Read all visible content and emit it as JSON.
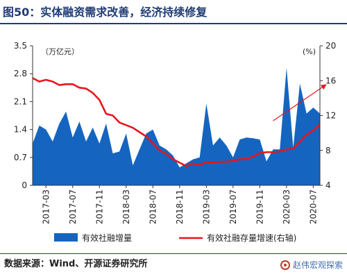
{
  "title": "图50：实体融资需求改善，经济持续修复",
  "source": "数据来源：Wind、开源证券研究所",
  "watermark": "赵伟宏观探索",
  "colors": {
    "area": "#1565C0",
    "line": "#E8141B",
    "title": "#1f3c74"
  },
  "chart_data": {
    "type": "area",
    "left_unit": "（万亿元）",
    "right_unit": "(%)",
    "left_axis": {
      "min": 0,
      "max": 3.5,
      "ticks": [
        "0",
        "0.7",
        "1.4",
        "2.1",
        "2.8",
        "3.5"
      ]
    },
    "right_axis": {
      "min": 4,
      "max": 20,
      "ticks": [
        "4",
        "8",
        "12",
        "16",
        "20"
      ]
    },
    "x_tick_labels": [
      "2017-03",
      "2017-07",
      "2017-11",
      "2018-03",
      "2018-07",
      "2018-11",
      "2019-03",
      "2019-07",
      "2019-11",
      "2020-03",
      "2020-07"
    ],
    "x": [
      "2017-01",
      "2017-02",
      "2017-03",
      "2017-04",
      "2017-05",
      "2017-06",
      "2017-07",
      "2017-08",
      "2017-09",
      "2017-10",
      "2017-11",
      "2017-12",
      "2018-01",
      "2018-02",
      "2018-03",
      "2018-04",
      "2018-05",
      "2018-06",
      "2018-07",
      "2018-08",
      "2018-09",
      "2018-10",
      "2018-11",
      "2018-12",
      "2019-01",
      "2019-02",
      "2019-03",
      "2019-04",
      "2019-05",
      "2019-06",
      "2019-07",
      "2019-08",
      "2019-09",
      "2019-10",
      "2019-11",
      "2019-12",
      "2020-01",
      "2020-02",
      "2020-03",
      "2020-04",
      "2020-05",
      "2020-06",
      "2020-07",
      "2020-08"
    ],
    "series": [
      {
        "name": "有效社融增量",
        "axis": "left",
        "style": "area",
        "values": [
          1.05,
          1.5,
          1.4,
          1.1,
          1.55,
          1.85,
          1.2,
          1.6,
          1.1,
          1.45,
          1.05,
          1.55,
          0.8,
          0.85,
          1.3,
          0.5,
          0.9,
          1.3,
          1.4,
          1.0,
          0.9,
          0.75,
          0.45,
          0.55,
          0.65,
          0.7,
          2.05,
          1.0,
          1.2,
          1.0,
          0.7,
          1.15,
          1.2,
          1.18,
          1.15,
          0.6,
          0.9,
          0.9,
          2.95,
          0.95,
          2.55,
          1.8,
          1.95,
          1.8
        ]
      },
      {
        "name": "有效社融存量增速(右轴)",
        "axis": "right",
        "style": "line",
        "values": [
          16.3,
          15.9,
          16.1,
          15.9,
          15.5,
          15.6,
          15.6,
          15.2,
          15.1,
          14.6,
          13.8,
          12.2,
          12.0,
          11.2,
          10.9,
          10.6,
          10.1,
          9.6,
          8.8,
          8.0,
          7.6,
          7.0,
          6.6,
          6.2,
          6.5,
          6.3,
          6.7,
          6.6,
          6.7,
          6.7,
          6.8,
          7.0,
          7.0,
          7.3,
          7.7,
          7.8,
          7.8,
          7.9,
          8.1,
          8.2,
          9.0,
          9.8,
          10.3,
          11.0
        ]
      }
    ],
    "trend_arrows": [
      {
        "axis": "right",
        "from": {
          "x": "2020-01",
          "y": 11.4
        },
        "to": {
          "x": "2020-08",
          "y": 15.5
        }
      }
    ],
    "legend": {
      "placement": "bottom",
      "items": [
        "有效社融增量",
        "有效社融存量增速(右轴)"
      ]
    },
    "grid": false
  }
}
